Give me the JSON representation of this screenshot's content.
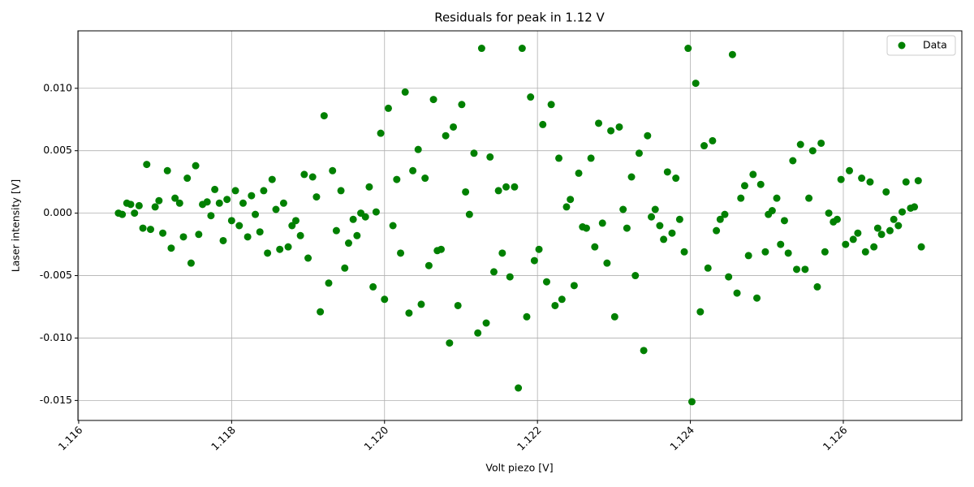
{
  "chart_data": {
    "type": "scatter",
    "title": "Residuals for peak in 1.12 V",
    "x_label": "Volt piezo [V]",
    "y_label": "Laser intensity [V]",
    "x": [
      1.11652,
      1.11657,
      1.11663,
      1.11668,
      1.11673,
      1.11679,
      1.11684,
      1.11689,
      1.11694,
      1.117,
      1.11705,
      1.1171,
      1.11716,
      1.11721,
      1.11726,
      1.11732,
      1.11737,
      1.11742,
      1.11747,
      1.11753,
      1.11757,
      1.11762,
      1.11768,
      1.11773,
      1.11778,
      1.11784,
      1.11789,
      1.11794,
      1.118,
      1.11805,
      1.1181,
      1.11815,
      1.11821,
      1.11826,
      1.11831,
      1.11837,
      1.11842,
      1.11847,
      1.11853,
      1.11858,
      1.11863,
      1.11868,
      1.11874,
      1.11879,
      1.11884,
      1.1189,
      1.11895,
      1.119,
      1.11906,
      1.11911,
      1.11916,
      1.11921,
      1.11927,
      1.11932,
      1.11937,
      1.11943,
      1.11948,
      1.11953,
      1.11959,
      1.11964,
      1.11969,
      1.11975,
      1.1198,
      1.11985,
      1.11989,
      1.11995,
      1.12,
      1.12005,
      1.12011,
      1.12016,
      1.12021,
      1.12027,
      1.12032,
      1.12037,
      1.12044,
      1.12048,
      1.12053,
      1.12058,
      1.12064,
      1.12069,
      1.12074,
      1.1208,
      1.12085,
      1.1209,
      1.12096,
      1.12101,
      1.12106,
      1.12111,
      1.12117,
      1.12122,
      1.12127,
      1.12133,
      1.12138,
      1.12143,
      1.12149,
      1.12154,
      1.12159,
      1.12164,
      1.1217,
      1.12175,
      1.1218,
      1.12186,
      1.12191,
      1.12196,
      1.12202,
      1.12207,
      1.12212,
      1.12218,
      1.12223,
      1.12228,
      1.12232,
      1.12238,
      1.12243,
      1.12248,
      1.12254,
      1.12259,
      1.12264,
      1.1227,
      1.12275,
      1.1228,
      1.12285,
      1.12291,
      1.12296,
      1.12301,
      1.12307,
      1.12312,
      1.12317,
      1.12323,
      1.12328,
      1.12333,
      1.12339,
      1.12344,
      1.12349,
      1.12354,
      1.1236,
      1.12365,
      1.1237,
      1.12376,
      1.12381,
      1.12386,
      1.12392,
      1.12397,
      1.12402,
      1.12407,
      1.12413,
      1.12418,
      1.12423,
      1.12429,
      1.12434,
      1.12439,
      1.12445,
      1.1245,
      1.12455,
      1.12461,
      1.12466,
      1.12471,
      1.12476,
      1.12482,
      1.12487,
      1.12492,
      1.12498,
      1.12502,
      1.12507,
      1.12513,
      1.12518,
      1.12523,
      1.12528,
      1.12534,
      1.12539,
      1.12544,
      1.1255,
      1.12555,
      1.1256,
      1.12566,
      1.12571,
      1.12576,
      1.12581,
      1.12587,
      1.12592,
      1.12597,
      1.12603,
      1.12608,
      1.12613,
      1.12619,
      1.12624,
      1.12629,
      1.12635,
      1.1264,
      1.12645,
      1.1265,
      1.12656,
      1.12661,
      1.12666,
      1.12672,
      1.12677,
      1.12682,
      1.12688,
      1.12693,
      1.12698,
      1.12702
    ],
    "series": [
      {
        "name": "Data",
        "color": "#008000",
        "values": [
          0.0,
          -0.0001,
          0.0008,
          0.0007,
          0.0,
          0.0006,
          -0.0012,
          0.0039,
          -0.0013,
          0.0005,
          0.001,
          -0.0016,
          0.0034,
          -0.0028,
          0.0012,
          0.0008,
          -0.0019,
          0.0028,
          -0.004,
          0.0038,
          -0.0017,
          0.0007,
          0.0009,
          -0.0002,
          0.0019,
          0.0008,
          -0.0022,
          0.0011,
          -0.0006,
          0.0018,
          -0.001,
          0.0008,
          -0.0019,
          0.0014,
          -0.0001,
          -0.0015,
          0.0018,
          -0.0032,
          0.0027,
          0.0003,
          -0.0029,
          0.0008,
          -0.0027,
          -0.001,
          -0.0006,
          -0.0018,
          0.0031,
          -0.0036,
          0.0029,
          0.0013,
          -0.0079,
          0.0078,
          -0.0056,
          0.0034,
          -0.0014,
          0.0018,
          -0.0044,
          -0.0024,
          -0.0005,
          -0.0018,
          0.0,
          -0.0003,
          0.0021,
          -0.0059,
          0.0001,
          0.0064,
          -0.0069,
          0.0084,
          -0.001,
          0.0027,
          -0.0032,
          0.0097,
          -0.008,
          0.0034,
          0.0051,
          -0.0073,
          0.0028,
          -0.0042,
          0.0091,
          -0.003,
          -0.0029,
          0.0062,
          -0.0104,
          0.0069,
          -0.0074,
          0.0087,
          0.0017,
          -0.0001,
          0.0048,
          -0.0096,
          0.0132,
          -0.0088,
          0.0045,
          -0.0047,
          0.0018,
          -0.0032,
          0.0021,
          -0.0051,
          0.0021,
          -0.014,
          0.0132,
          -0.0083,
          0.0093,
          -0.0038,
          -0.0029,
          0.0071,
          -0.0055,
          0.0087,
          -0.0074,
          0.0044,
          -0.0069,
          0.0005,
          0.0011,
          -0.0058,
          0.0032,
          -0.0011,
          -0.0012,
          0.0044,
          -0.0027,
          0.0072,
          -0.0008,
          -0.004,
          0.0066,
          -0.0083,
          0.0069,
          0.0003,
          -0.0012,
          0.0029,
          -0.005,
          0.0048,
          -0.011,
          0.0062,
          -0.0003,
          0.0003,
          -0.001,
          -0.0021,
          0.0033,
          -0.0016,
          0.0028,
          -0.0005,
          -0.0031,
          0.0132,
          -0.0151,
          0.0104,
          -0.0079,
          0.0054,
          -0.0044,
          0.0058,
          -0.0014,
          -0.0005,
          -0.0001,
          -0.0051,
          0.0127,
          -0.0064,
          0.0012,
          0.0022,
          -0.0034,
          0.0031,
          -0.0068,
          0.0023,
          -0.0031,
          -0.0001,
          0.0002,
          0.0012,
          -0.0025,
          -0.0006,
          -0.0032,
          0.0042,
          -0.0045,
          0.0055,
          -0.0045,
          0.0012,
          0.005,
          -0.0059,
          0.0056,
          -0.0031,
          0.0,
          -0.0007,
          -0.0005,
          0.0027,
          -0.0025,
          0.0034,
          -0.0021,
          -0.0016,
          0.0028,
          -0.0031,
          0.0025,
          -0.0027,
          -0.0012,
          -0.0017,
          0.0017,
          -0.0014,
          -0.0005,
          -0.001,
          0.0001,
          0.0025,
          0.0004,
          0.0005,
          0.0026,
          -0.0027
        ]
      }
    ],
    "xlim": [
      1.11599,
      1.12755
    ],
    "ylim": [
      -0.0166,
      0.0146
    ],
    "xticks": [
      1.116,
      1.118,
      {
        "value": 1.12,
        "label": "1.120"
      },
      1.122,
      1.124,
      1.126
    ],
    "yticks": [
      -0.015,
      {
        "value": -0.01,
        "label": "-0.010"
      },
      -0.005,
      {
        "value": 0,
        "label": "0.000"
      },
      0.005,
      {
        "value": 0.01,
        "label": "0.010"
      }
    ],
    "grid": true,
    "legend": "upper right"
  }
}
